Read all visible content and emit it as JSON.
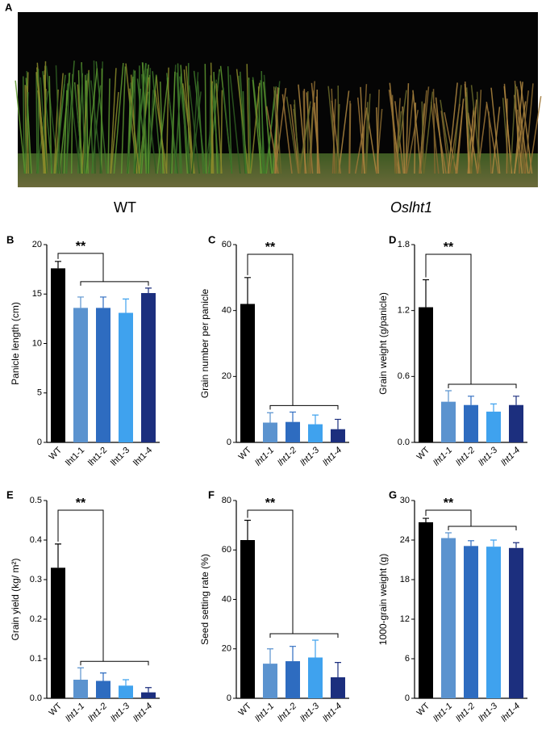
{
  "panel_a": {
    "label": "A",
    "captions": [
      "WT",
      "Oslht1"
    ]
  },
  "chart_data": [
    {
      "type": "bar",
      "panel_label": "B",
      "ylabel": "Panicle length (cm)",
      "categories": [
        "WT",
        "lht1-1",
        "lht1-2",
        "lht1-3",
        "lht1-4"
      ],
      "values": [
        17.6,
        13.6,
        13.6,
        13.1,
        15.1
      ],
      "errors": [
        0.7,
        1.1,
        1.1,
        1.4,
        0.5
      ],
      "colors": [
        "#000000",
        "#5b93cf",
        "#2e6cc0",
        "#3fa2ee",
        "#1c2f7e"
      ],
      "ylim": [
        0,
        20
      ],
      "yticks": [
        0,
        5,
        10,
        15,
        20
      ],
      "significance": "**"
    },
    {
      "type": "bar",
      "panel_label": "C",
      "ylabel": "Grain number per panicle",
      "categories": [
        "WT",
        "lht1-1",
        "lht1-2",
        "lht1-3",
        "lht1-4"
      ],
      "values": [
        42,
        6,
        6.2,
        5.5,
        4
      ],
      "errors": [
        8,
        3,
        3,
        2.8,
        3
      ],
      "colors": [
        "#000000",
        "#5b93cf",
        "#2e6cc0",
        "#3fa2ee",
        "#1c2f7e"
      ],
      "ylim": [
        0,
        60
      ],
      "yticks": [
        0,
        20,
        40,
        60
      ],
      "significance": "**"
    },
    {
      "type": "bar",
      "panel_label": "D",
      "ylabel": "Grain weight (g/panicle)",
      "categories": [
        "WT",
        "lht1-1",
        "lht1-2",
        "lht1-3",
        "lht1-4"
      ],
      "values": [
        1.23,
        0.37,
        0.34,
        0.28,
        0.34
      ],
      "errors": [
        0.25,
        0.1,
        0.08,
        0.07,
        0.08
      ],
      "colors": [
        "#000000",
        "#5b93cf",
        "#2e6cc0",
        "#3fa2ee",
        "#1c2f7e"
      ],
      "ylim": [
        0,
        1.8
      ],
      "yticks": [
        {
          "value": 0,
          "label": "0.0"
        },
        0.6,
        1.2,
        1.8
      ],
      "significance": "**"
    },
    {
      "type": "bar",
      "panel_label": "E",
      "ylabel": "Grain yield (kg/ m²)",
      "categories": [
        "WT",
        "lht1-1",
        "lht1-2",
        "lht1-3",
        "lht1-4"
      ],
      "values": [
        0.33,
        0.047,
        0.044,
        0.032,
        0.015
      ],
      "errors": [
        0.06,
        0.03,
        0.02,
        0.015,
        0.012
      ],
      "colors": [
        "#000000",
        "#5b93cf",
        "#2e6cc0",
        "#3fa2ee",
        "#1c2f7e"
      ],
      "ylim": [
        0,
        0.5
      ],
      "yticks": [
        {
          "value": 0,
          "label": "0.0"
        },
        0.1,
        0.2,
        0.3,
        0.4,
        0.5
      ],
      "significance": "**"
    },
    {
      "type": "bar",
      "panel_label": "F",
      "ylabel": "Seed setting rate (%)",
      "categories": [
        "WT",
        "lht1-1",
        "lht1-2",
        "lht1-3",
        "lht1-4"
      ],
      "values": [
        64,
        14,
        15,
        16.5,
        8.5
      ],
      "errors": [
        8,
        6,
        6,
        7,
        6
      ],
      "colors": [
        "#000000",
        "#5b93cf",
        "#2e6cc0",
        "#3fa2ee",
        "#1c2f7e"
      ],
      "ylim": [
        0,
        80
      ],
      "yticks": [
        0,
        20,
        40,
        60,
        80
      ],
      "significance": "**"
    },
    {
      "type": "bar",
      "panel_label": "G",
      "ylabel": "1000-grain weight (g)",
      "categories": [
        "WT",
        "lht1-1",
        "lht1-2",
        "lht1-3",
        "lht1-4"
      ],
      "values": [
        26.7,
        24.3,
        23.1,
        23,
        22.8
      ],
      "errors": [
        0.6,
        0.8,
        0.8,
        1,
        0.8
      ],
      "colors": [
        "#000000",
        "#5b93cf",
        "#2e6cc0",
        "#3fa2ee",
        "#1c2f7e"
      ],
      "ylim": [
        0,
        30
      ],
      "yticks": [
        0,
        6,
        12,
        18,
        24,
        30
      ],
      "significance": "**"
    }
  ]
}
